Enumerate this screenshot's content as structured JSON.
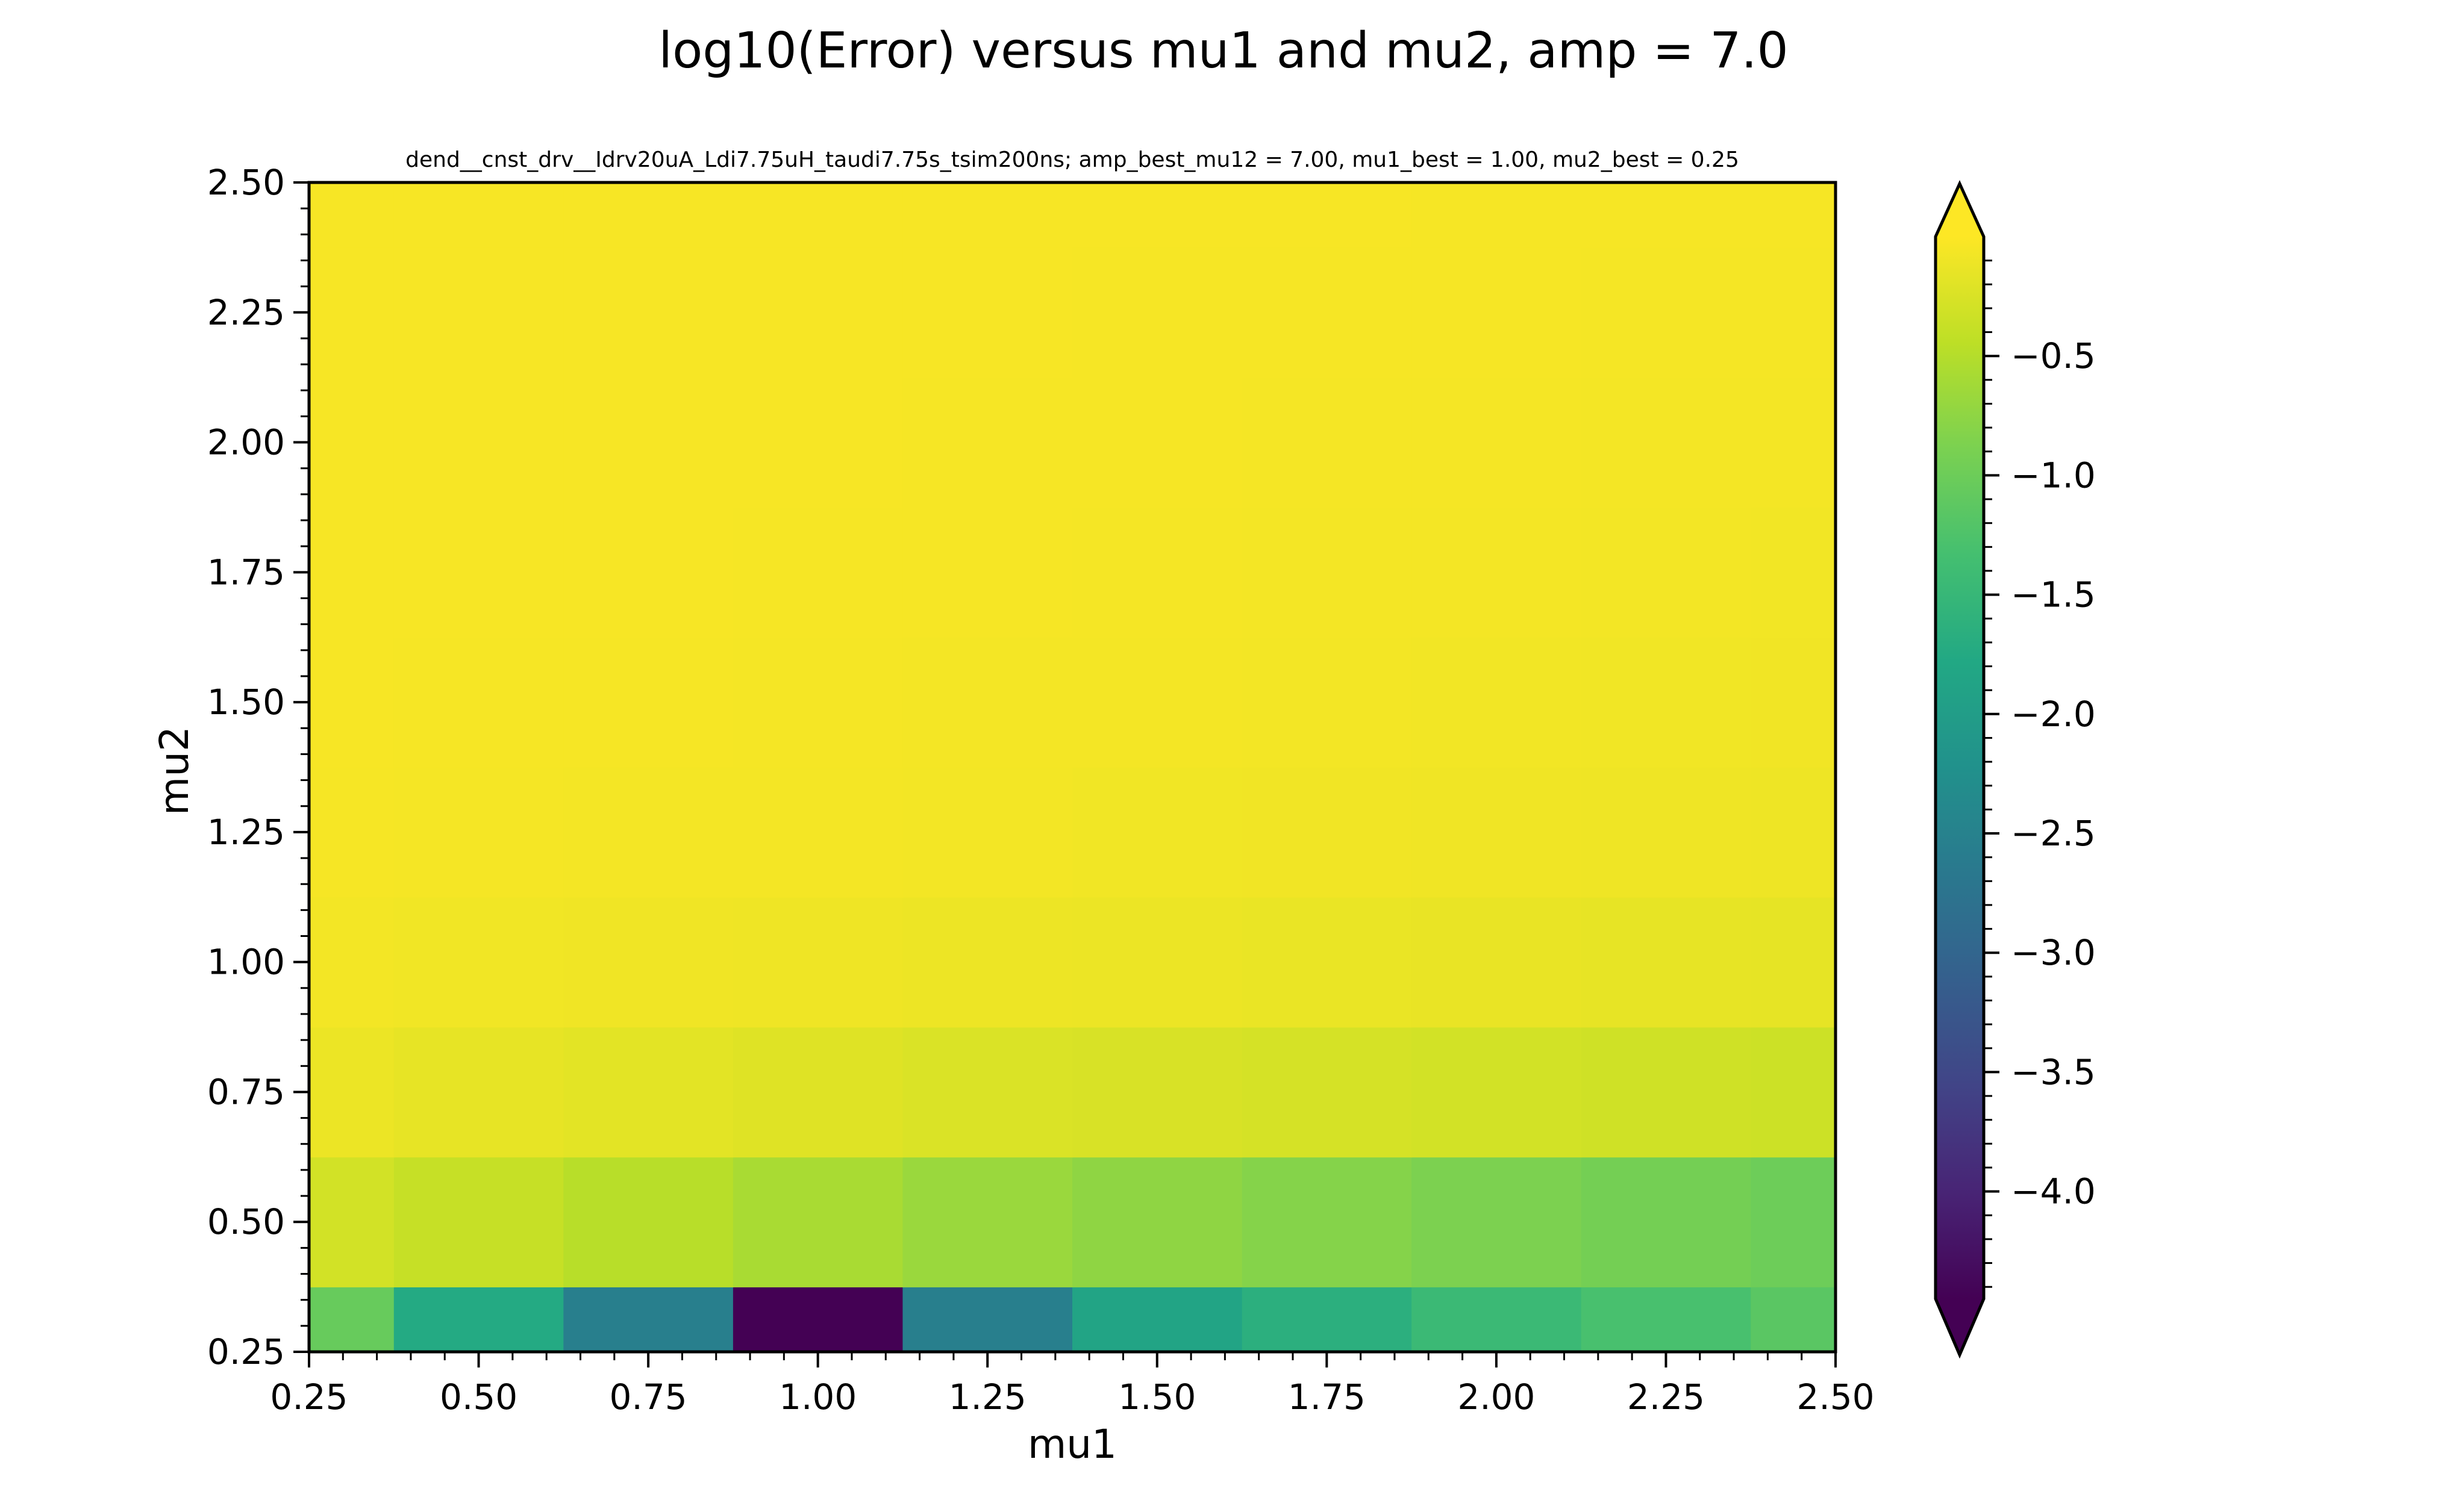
{
  "chart_data": {
    "type": "heatmap",
    "title": "log10(Error) versus mu1 and mu2, amp = 7.0",
    "subtitle": "dend__cnst_drv__Idrv20uA_Ldi7.75uH_taudi7.75s_tsim200ns; amp_best_mu12 = 7.00, mu1_best = 1.00, mu2_best = 0.25",
    "xlabel": "mu1",
    "ylabel": "mu2",
    "xlim": [
      0.25,
      2.5
    ],
    "ylim": [
      0.25,
      2.5
    ],
    "x_ticks": [
      "0.25",
      "0.50",
      "0.75",
      "1.00",
      "1.25",
      "1.50",
      "1.75",
      "2.00",
      "2.25",
      "2.50"
    ],
    "y_ticks": [
      "0.25",
      "0.50",
      "0.75",
      "1.00",
      "1.25",
      "1.50",
      "1.75",
      "2.00",
      "2.25",
      "2.50"
    ],
    "x": [
      0.25,
      0.5,
      0.75,
      1.0,
      1.25,
      1.5,
      1.75,
      2.0,
      2.25,
      2.5
    ],
    "y": [
      0.25,
      0.5,
      0.75,
      1.0,
      1.25,
      1.5,
      1.75,
      2.0,
      2.25,
      2.5
    ],
    "z": [
      [
        -1.05,
        -1.75,
        -2.55,
        -4.45,
        -2.55,
        -1.85,
        -1.65,
        -1.45,
        -1.3,
        -1.15
      ],
      [
        -0.3,
        -0.38,
        -0.48,
        -0.58,
        -0.68,
        -0.75,
        -0.82,
        -0.88,
        -0.94,
        -1.0
      ],
      [
        -0.12,
        -0.15,
        -0.18,
        -0.21,
        -0.24,
        -0.26,
        -0.28,
        -0.3,
        -0.32,
        -0.34
      ],
      [
        -0.07,
        -0.08,
        -0.09,
        -0.1,
        -0.11,
        -0.12,
        -0.13,
        -0.14,
        -0.15,
        -0.16
      ],
      [
        -0.05,
        -0.055,
        -0.06,
        -0.065,
        -0.07,
        -0.08,
        -0.085,
        -0.09,
        -0.1,
        -0.105
      ],
      [
        -0.045,
        -0.048,
        -0.05,
        -0.055,
        -0.06,
        -0.065,
        -0.07,
        -0.075,
        -0.08,
        -0.085
      ],
      [
        -0.04,
        -0.043,
        -0.045,
        -0.048,
        -0.05,
        -0.055,
        -0.06,
        -0.065,
        -0.07,
        -0.075
      ],
      [
        -0.04,
        -0.042,
        -0.043,
        -0.045,
        -0.047,
        -0.05,
        -0.053,
        -0.056,
        -0.06,
        -0.065
      ],
      [
        -0.04,
        -0.041,
        -0.042,
        -0.043,
        -0.044,
        -0.046,
        -0.048,
        -0.05,
        -0.053,
        -0.056
      ],
      [
        -0.04,
        -0.04,
        -0.041,
        -0.042,
        -0.043,
        -0.044,
        -0.045,
        -0.047,
        -0.049,
        -0.051
      ]
    ],
    "colormap": "viridis",
    "colorbar": {
      "min": -4.45,
      "max": 0.0,
      "extend": "both",
      "ticks": [
        -0.5,
        -1.0,
        -1.5,
        -2.0,
        -2.5,
        -3.0,
        -3.5,
        -4.0
      ],
      "tick_labels": [
        "−0.5",
        "−1.0",
        "−1.5",
        "−2.0",
        "−2.5",
        "−3.0",
        "−3.5",
        "−4.0"
      ],
      "extend_low_color": "#440154",
      "extend_high_color": "#fde725"
    },
    "grid": false
  }
}
